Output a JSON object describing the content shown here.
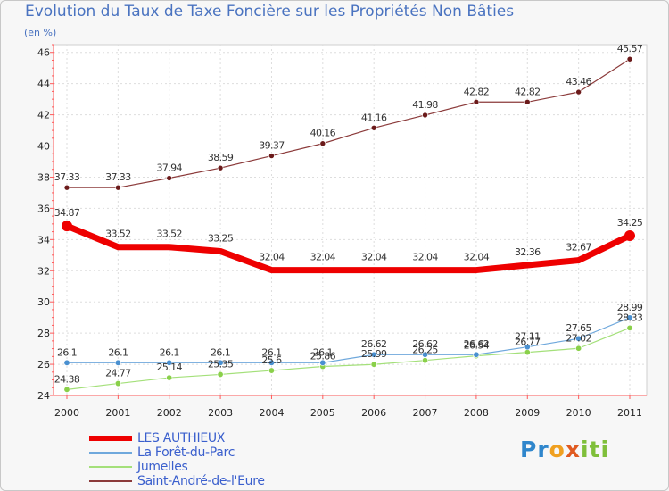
{
  "title": "Evolution du Taux de Taxe Foncière sur les Propriétés Non Bâties",
  "subtitle": "(en %)",
  "brand": {
    "letters": [
      "P",
      "r",
      "o",
      "x",
      "i",
      "t",
      "i"
    ],
    "colors": [
      "#2f86cc",
      "#2f86cc",
      "#f0a020",
      "#e05a20",
      "#7fbf3a",
      "#7fbf3a",
      "#7fbf3a"
    ]
  },
  "chart_data": {
    "type": "line",
    "title": "Evolution du Taux de Taxe Foncière sur les Propriétés Non Bâties",
    "ylabel": "(en %)",
    "xlabel": "",
    "categories": [
      "2000",
      "2001",
      "2002",
      "2003",
      "2004",
      "2005",
      "2006",
      "2007",
      "2008",
      "2009",
      "2010",
      "2011"
    ],
    "ylim": [
      24,
      46.5
    ],
    "yticks": [
      24,
      26,
      28,
      30,
      32,
      34,
      36,
      38,
      40,
      42,
      44,
      46
    ],
    "grid": true,
    "legend_position": "bottom-left",
    "series": [
      {
        "name": "LES AUTHIEUX",
        "color": "#ee0000",
        "values": [
          34.87,
          33.52,
          33.52,
          33.25,
          32.04,
          32.04,
          32.04,
          32.04,
          32.04,
          32.36,
          32.67,
          34.25
        ],
        "labels": [
          "34.87",
          "33.52",
          "33.52",
          "33.25",
          "32.04",
          "32.04",
          "32.04",
          "32.04",
          "32.04",
          "32.36",
          "32.67",
          "34.25"
        ]
      },
      {
        "name": "La Forêt-du-Parc",
        "color": "#6fa8dc",
        "values": [
          26.1,
          26.1,
          26.1,
          26.1,
          26.1,
          26.1,
          26.62,
          26.62,
          26.62,
          27.11,
          27.65,
          28.99
        ],
        "labels": [
          "26.1",
          "26.1",
          "26.1",
          "26.1",
          "26.1",
          "26.1",
          "26.62",
          "26.62",
          "26.62",
          "27.11",
          "27.65",
          "28.99"
        ]
      },
      {
        "name": "Jumelles",
        "color": "#a4e07a",
        "values": [
          24.38,
          24.77,
          25.14,
          25.35,
          25.6,
          25.86,
          25.99,
          26.25,
          26.54,
          26.77,
          27.02,
          28.33
        ],
        "labels": [
          "24.38",
          "24.77",
          "25.14",
          "25.35",
          "25.6",
          "25.86",
          "25.99",
          "26.25",
          "26.54",
          "26.77",
          "27.02",
          "28.33"
        ]
      },
      {
        "name": "Saint-André-de-l'Eure",
        "color": "#8b3a3a",
        "values": [
          37.33,
          37.33,
          37.94,
          38.59,
          39.37,
          40.16,
          41.16,
          41.98,
          42.82,
          42.82,
          43.46,
          45.57
        ],
        "labels": [
          "37.33",
          "37.33",
          "37.94",
          "38.59",
          "39.37",
          "40.16",
          "41.16",
          "41.98",
          "42.82",
          "42.82",
          "43.46",
          "45.57"
        ]
      }
    ]
  }
}
